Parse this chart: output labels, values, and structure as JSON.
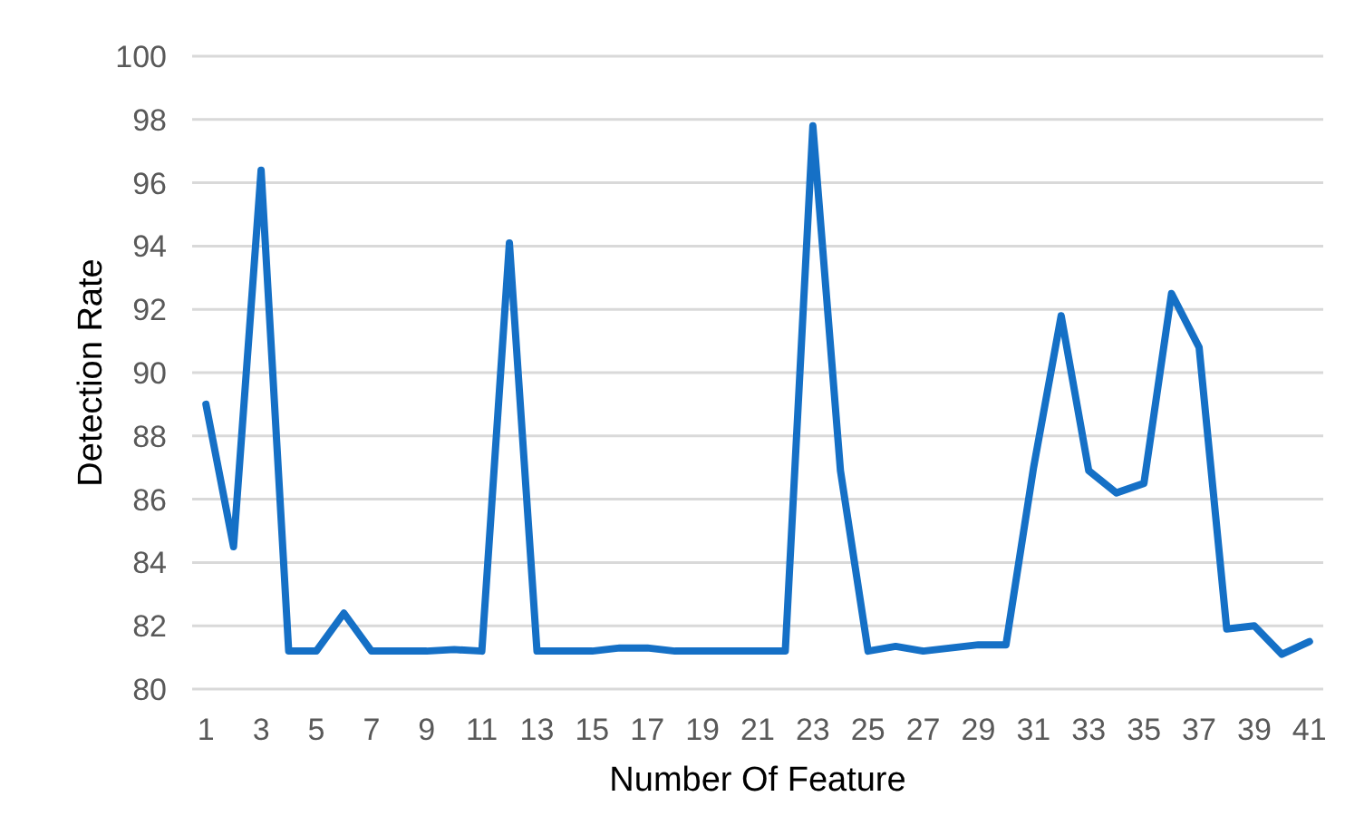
{
  "chart_data": {
    "type": "line",
    "xlabel": "Number Of Feature",
    "ylabel": "Detection Rate",
    "x": [
      1,
      2,
      3,
      4,
      5,
      6,
      7,
      8,
      9,
      10,
      11,
      12,
      13,
      14,
      15,
      16,
      17,
      18,
      19,
      20,
      21,
      22,
      23,
      24,
      25,
      26,
      27,
      28,
      29,
      30,
      31,
      32,
      33,
      34,
      35,
      36,
      37,
      38,
      39,
      40,
      41
    ],
    "series": [
      {
        "color": "#1570c6",
        "values": [
          89.0,
          84.5,
          96.4,
          81.2,
          81.2,
          82.4,
          81.2,
          81.2,
          81.2,
          81.25,
          81.2,
          94.1,
          81.2,
          81.2,
          81.2,
          81.3,
          81.3,
          81.2,
          81.2,
          81.2,
          81.2,
          81.2,
          97.8,
          86.9,
          81.2,
          81.35,
          81.2,
          81.3,
          81.4,
          81.4,
          87.0,
          91.8,
          86.9,
          86.2,
          86.5,
          92.5,
          90.8,
          81.9,
          82.0,
          81.1,
          81.5
        ]
      }
    ],
    "xlim": [
      0.5,
      41.5
    ],
    "xticks": [
      1,
      3,
      5,
      7,
      9,
      11,
      13,
      15,
      17,
      19,
      21,
      23,
      25,
      27,
      29,
      31,
      33,
      35,
      37,
      39,
      41
    ],
    "ylim": [
      80,
      100
    ],
    "yticks": [
      80,
      82,
      84,
      86,
      88,
      90,
      92,
      94,
      96,
      98,
      100
    ],
    "grid": "y",
    "marker": "none",
    "line_style": "solid"
  }
}
